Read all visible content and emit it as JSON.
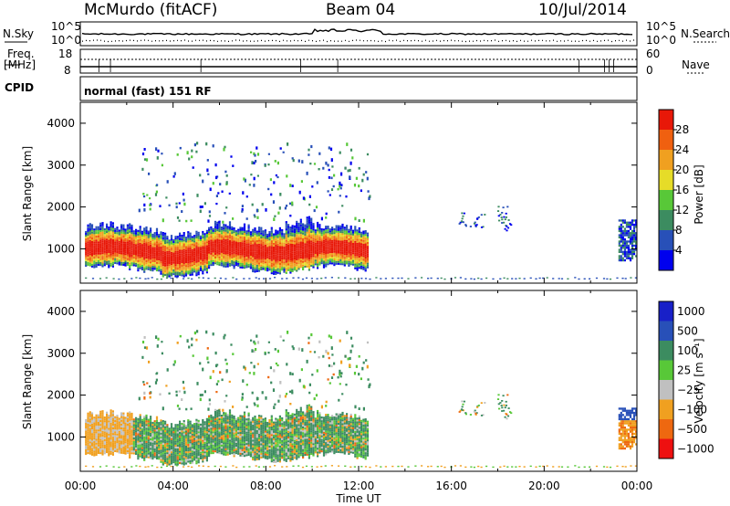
{
  "header": {
    "station": "McMurdo (fitACF)",
    "beam": "Beam 04",
    "date": "10/Jul/2014"
  },
  "status_panels": {
    "nsky_label": "N.Sky",
    "nsky_ticks": [
      "10^5",
      "10^0"
    ],
    "nsearch_label": "N.Search",
    "nsearch_ticks": [
      "10^5",
      "10^0"
    ],
    "freq_label": "Freq.",
    "freq_unit": "[MHz]",
    "freq_ticks": [
      "18",
      "8"
    ],
    "nave_label": "Nave",
    "nave_ticks": [
      "60",
      "0"
    ],
    "cpid_label": "CPID",
    "cpid_value": "normal (fast) 151 RF"
  },
  "colors": {
    "power": [
      "#0000ee",
      "#2850b8",
      "#3c8c60",
      "#58c838",
      "#e6dc28",
      "#f0a020",
      "#f06010",
      "#e81808"
    ],
    "velocity": [
      "#ee1010",
      "#ee6810",
      "#f0a020",
      "#c0c0c0",
      "#58c838",
      "#3c8c60",
      "#2850b8",
      "#1820c8"
    ]
  },
  "chart_data": [
    {
      "type": "heatmap",
      "name": "power",
      "xlabel": "",
      "ylabel": "Slant Range [km]",
      "xlim": [
        "00:00",
        "24:00"
      ],
      "ylim": [
        180,
        4500
      ],
      "yticks": [
        "1000",
        "2000",
        "3000",
        "4000"
      ],
      "colorbar": {
        "label": "Power [dB]",
        "ticks": [
          "4",
          "8",
          "12",
          "16",
          "20",
          "24",
          "28"
        ],
        "range": [
          0,
          32
        ]
      }
    },
    {
      "type": "heatmap",
      "name": "velocity",
      "xlabel": "Time UT",
      "ylabel": "Slant Range [km]",
      "xlim": [
        "00:00",
        "24:00"
      ],
      "ylim": [
        180,
        4500
      ],
      "xticks": [
        "00:00",
        "04:00",
        "08:00",
        "12:00",
        "16:00",
        "20:00",
        "00:00"
      ],
      "yticks": [
        "1000",
        "2000",
        "3000",
        "4000"
      ],
      "colorbar": {
        "label": "Velocity [m s⁻¹]",
        "ticks": [
          "1000",
          "500",
          "100",
          "25",
          "−25",
          "−100",
          "−500",
          "−1000"
        ]
      }
    }
  ]
}
